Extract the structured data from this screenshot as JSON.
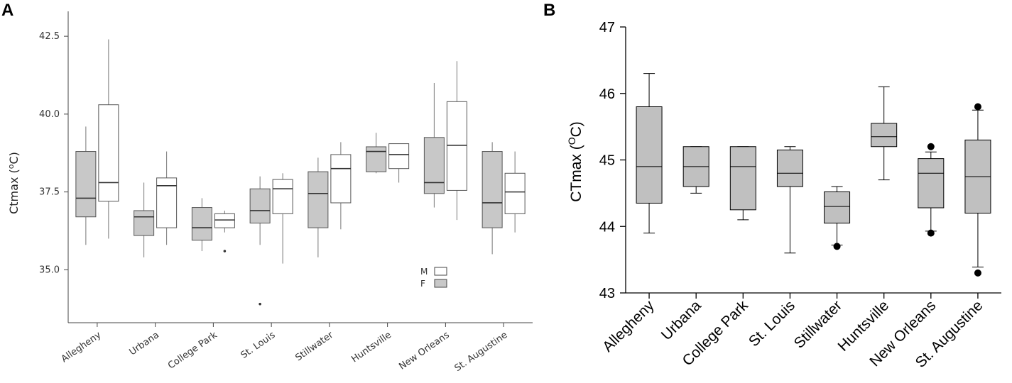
{
  "chart_data": [
    {
      "panel": "A",
      "type": "box",
      "ylabel": "Ctmax (",
      "ylabel_sup": "o",
      "ylabel_suffix": "C)",
      "ylim": [
        33.3,
        43.3
      ],
      "yticks": [
        "35.0",
        "37.5",
        "40.0",
        "42.5"
      ],
      "ytick_values": [
        35.0,
        37.5,
        40.0,
        42.5
      ],
      "categories": [
        "Allegheny",
        "Urbana",
        "College Park",
        "St. Louis",
        "Stillwater",
        "Huntsville",
        "New Orleans",
        "St. Augustine"
      ],
      "legend": [
        {
          "label": "M",
          "color": "#ffffff"
        },
        {
          "label": "F",
          "color": "#c8c8c8"
        }
      ],
      "series": [
        {
          "name": "F",
          "color": "#c8c8c8",
          "boxes": [
            {
              "whislo": 35.8,
              "q1": 36.7,
              "med": 37.3,
              "q3": 38.8,
              "whishi": 39.6,
              "fliers": []
            },
            {
              "whislo": 35.4,
              "q1": 36.1,
              "med": 36.7,
              "q3": 36.9,
              "whishi": 37.8,
              "fliers": []
            },
            {
              "whislo": 35.6,
              "q1": 35.95,
              "med": 36.35,
              "q3": 37.0,
              "whishi": 37.3,
              "fliers": []
            },
            {
              "whislo": 35.8,
              "q1": 36.5,
              "med": 36.9,
              "q3": 37.6,
              "whishi": 38.0,
              "fliers": [
                33.9
              ]
            },
            {
              "whislo": 35.4,
              "q1": 36.35,
              "med": 37.45,
              "q3": 38.15,
              "whishi": 38.6,
              "fliers": []
            },
            {
              "whislo": 38.1,
              "q1": 38.15,
              "med": 38.8,
              "q3": 38.95,
              "whishi": 39.4,
              "fliers": []
            },
            {
              "whislo": 37.0,
              "q1": 37.45,
              "med": 37.8,
              "q3": 39.25,
              "whishi": 41.0,
              "fliers": []
            },
            {
              "whislo": 35.5,
              "q1": 36.35,
              "med": 37.15,
              "q3": 38.8,
              "whishi": 39.1,
              "fliers": []
            }
          ]
        },
        {
          "name": "M",
          "color": "#ffffff",
          "boxes": [
            {
              "whislo": 36.0,
              "q1": 37.2,
              "med": 37.8,
              "q3": 40.3,
              "whishi": 42.4,
              "fliers": []
            },
            {
              "whislo": 35.8,
              "q1": 36.35,
              "med": 37.7,
              "q3": 37.95,
              "whishi": 38.8,
              "fliers": []
            },
            {
              "whislo": 36.2,
              "q1": 36.35,
              "med": 36.6,
              "q3": 36.8,
              "whishi": 36.9,
              "fliers": [
                35.6
              ]
            },
            {
              "whislo": 35.2,
              "q1": 36.8,
              "med": 37.6,
              "q3": 37.9,
              "whishi": 38.1,
              "fliers": []
            },
            {
              "whislo": 36.3,
              "q1": 37.15,
              "med": 38.25,
              "q3": 38.7,
              "whishi": 39.1,
              "fliers": []
            },
            {
              "whislo": 37.8,
              "q1": 38.25,
              "med": 38.7,
              "q3": 39.05,
              "whishi": 39.05,
              "fliers": []
            },
            {
              "whislo": 36.6,
              "q1": 37.55,
              "med": 39.0,
              "q3": 40.4,
              "whishi": 41.7,
              "fliers": []
            },
            {
              "whislo": 36.2,
              "q1": 36.8,
              "med": 37.5,
              "q3": 38.1,
              "whishi": 38.8,
              "fliers": []
            }
          ]
        }
      ]
    },
    {
      "panel": "B",
      "type": "box",
      "ylabel": "CTmax (",
      "ylabel_sup": "O",
      "ylabel_suffix": "C)",
      "ylim": [
        43,
        47
      ],
      "yticks": [
        "43",
        "44",
        "45",
        "46",
        "47"
      ],
      "ytick_values": [
        43,
        44,
        45,
        46,
        47
      ],
      "categories": [
        "Allegheny",
        "Urbana",
        "College Park",
        "St. Louis",
        "Stillwater",
        "Huntsville",
        "New Orleans",
        "St. Augustine"
      ],
      "box_color": "#c0c0c0",
      "boxes": [
        {
          "whislo": 43.9,
          "q1": 44.35,
          "med": 44.9,
          "q3": 45.8,
          "whishi": 46.3,
          "fliers": []
        },
        {
          "whislo": 44.5,
          "q1": 44.6,
          "med": 44.9,
          "q3": 45.2,
          "whishi": 45.2,
          "fliers": []
        },
        {
          "whislo": 44.1,
          "q1": 44.25,
          "med": 44.9,
          "q3": 45.2,
          "whishi": 45.2,
          "fliers": []
        },
        {
          "whislo": 43.6,
          "q1": 44.6,
          "med": 44.8,
          "q3": 45.15,
          "whishi": 45.2,
          "fliers": []
        },
        {
          "whislo": 43.72,
          "q1": 44.05,
          "med": 44.3,
          "q3": 44.52,
          "whishi": 44.6,
          "fliers": [
            43.7
          ]
        },
        {
          "whislo": 44.7,
          "q1": 45.2,
          "med": 45.35,
          "q3": 45.55,
          "whishi": 46.1,
          "fliers": []
        },
        {
          "whislo": 43.93,
          "q1": 44.28,
          "med": 44.8,
          "q3": 45.02,
          "whishi": 45.12,
          "fliers": [
            43.9,
            45.2
          ]
        },
        {
          "whislo": 43.39,
          "q1": 44.2,
          "med": 44.75,
          "q3": 45.3,
          "whishi": 45.75,
          "fliers": [
            43.3,
            45.8
          ]
        }
      ]
    }
  ]
}
